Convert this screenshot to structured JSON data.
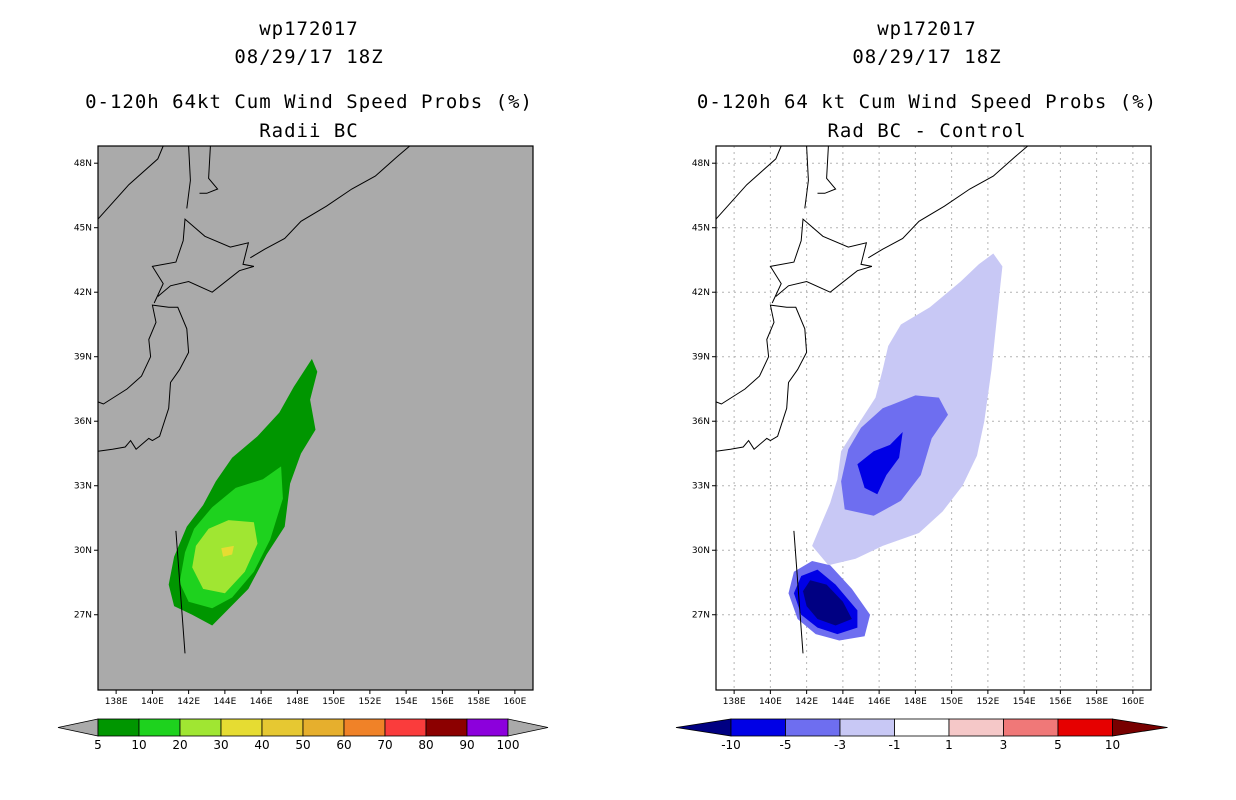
{
  "chart_data": [
    {
      "type": "heatmap",
      "storm_id": "wp172017",
      "datetime": "08/29/17 18Z",
      "title": "0-120h 64kt Cum Wind Speed Probs (%)",
      "subtitle": "Radii BC",
      "lon_range": [
        137,
        161
      ],
      "lat_range": [
        23.5,
        48.8
      ],
      "x_ticks": [
        "138E",
        "140E",
        "142E",
        "144E",
        "146E",
        "148E",
        "150E",
        "152E",
        "154E",
        "156E",
        "158E",
        "160E"
      ],
      "y_ticks": [
        "27N",
        "30N",
        "33N",
        "36N",
        "39N",
        "42N",
        "45N",
        "48N"
      ],
      "background": "#aaaaaa",
      "colorbar": {
        "labels": [
          "5",
          "10",
          "20",
          "30",
          "40",
          "50",
          "60",
          "70",
          "80",
          "90",
          "100"
        ],
        "colors": [
          "#009600",
          "#1ed21e",
          "#a0e632",
          "#e6dc32",
          "#e6c832",
          "#e6af2d",
          "#f08228",
          "#fa3c3c",
          "#8c0000",
          "#8c00dc"
        ]
      },
      "contours": [
        {
          "level": ">5",
          "color": "#009600",
          "poly": [
            [
              143.3,
              26.5
            ],
            [
              142.2,
              27.0
            ],
            [
              141.2,
              27.4
            ],
            [
              140.9,
              28.4
            ],
            [
              141.2,
              29.7
            ],
            [
              141.9,
              31.1
            ],
            [
              142.8,
              32.1
            ],
            [
              143.5,
              33.2
            ],
            [
              144.4,
              34.3
            ],
            [
              145.8,
              35.3
            ],
            [
              147.0,
              36.4
            ],
            [
              147.8,
              37.6
            ],
            [
              148.8,
              38.9
            ],
            [
              149.1,
              38.3
            ],
            [
              148.7,
              37.0
            ],
            [
              149.0,
              35.6
            ],
            [
              148.2,
              34.5
            ],
            [
              147.6,
              33.1
            ],
            [
              147.3,
              31.1
            ],
            [
              146.3,
              29.8
            ],
            [
              145.3,
              28.2
            ]
          ]
        },
        {
          "level": ">10",
          "color": "#1ed21e",
          "poly": [
            [
              143.3,
              27.3
            ],
            [
              142.0,
              27.6
            ],
            [
              141.5,
              28.5
            ],
            [
              141.8,
              29.9
            ],
            [
              142.3,
              31.0
            ],
            [
              143.3,
              32.0
            ],
            [
              144.6,
              32.9
            ],
            [
              146.1,
              33.3
            ],
            [
              147.1,
              33.9
            ],
            [
              147.2,
              32.4
            ],
            [
              146.5,
              30.5
            ],
            [
              145.6,
              29.0
            ],
            [
              144.4,
              27.8
            ]
          ]
        },
        {
          "level": ">20",
          "color": "#a0e632",
          "poly": [
            [
              144.0,
              28.0
            ],
            [
              142.8,
              28.2
            ],
            [
              142.2,
              29.2
            ],
            [
              142.4,
              30.2
            ],
            [
              143.1,
              31.0
            ],
            [
              144.2,
              31.4
            ],
            [
              145.6,
              31.3
            ],
            [
              145.8,
              30.3
            ],
            [
              145.1,
              29.0
            ]
          ]
        },
        {
          "level": ">30",
          "color": "#e6dc32",
          "poly": [
            [
              143.9,
              29.7
            ],
            [
              144.4,
              29.8
            ],
            [
              144.5,
              30.2
            ],
            [
              143.8,
              30.1
            ]
          ]
        }
      ]
    },
    {
      "type": "heatmap",
      "storm_id": "wp172017",
      "datetime": "08/29/17 18Z",
      "title": "0-120h 64 kt Cum Wind Speed Probs (%)",
      "subtitle": "Rad BC - Control",
      "lon_range": [
        137,
        161
      ],
      "lat_range": [
        23.5,
        48.8
      ],
      "x_ticks": [
        "138E",
        "140E",
        "142E",
        "144E",
        "146E",
        "148E",
        "150E",
        "152E",
        "154E",
        "156E",
        "158E",
        "160E"
      ],
      "y_ticks": [
        "27N",
        "30N",
        "33N",
        "36N",
        "39N",
        "42N",
        "45N",
        "48N"
      ],
      "background": "#ffffff",
      "colorbar": {
        "labels": [
          "-10",
          "-5",
          "-3",
          "-1",
          "1",
          "3",
          "5",
          "10"
        ],
        "colors": [
          "#0000e6",
          "#6e6ef0",
          "#c8c8f5",
          "#ffffff",
          "#f5c8c8",
          "#f07878",
          "#e60000"
        ],
        "low_color": "#000082",
        "high_color": "#780000"
      },
      "contours": [
        {
          "level": "-1 to -3",
          "color": "#c8c8f5",
          "poly": [
            [
              143.2,
              29.3
            ],
            [
              142.3,
              30.2
            ],
            [
              142.8,
              31.2
            ],
            [
              143.3,
              32.2
            ],
            [
              143.7,
              33.3
            ],
            [
              143.9,
              34.6
            ],
            [
              144.8,
              35.8
            ],
            [
              145.8,
              37.1
            ],
            [
              146.2,
              38.4
            ],
            [
              146.5,
              39.5
            ],
            [
              147.2,
              40.5
            ],
            [
              148.8,
              41.3
            ],
            [
              150.5,
              42.5
            ],
            [
              151.5,
              43.3
            ],
            [
              152.3,
              43.8
            ],
            [
              152.8,
              43.2
            ],
            [
              152.6,
              41.6
            ],
            [
              152.4,
              40.0
            ],
            [
              152.2,
              38.4
            ],
            [
              151.8,
              36.0
            ],
            [
              151.4,
              34.4
            ],
            [
              150.6,
              33.0
            ],
            [
              149.5,
              31.8
            ],
            [
              148.2,
              30.8
            ],
            [
              146.2,
              30.2
            ],
            [
              144.7,
              29.6
            ]
          ]
        },
        {
          "level": "-3 to -5",
          "color": "#6e6ef0",
          "poly": [
            [
              144.1,
              31.9
            ],
            [
              143.9,
              33.2
            ],
            [
              144.3,
              34.7
            ],
            [
              145.0,
              35.7
            ],
            [
              146.2,
              36.6
            ],
            [
              148.0,
              37.2
            ],
            [
              149.3,
              37.1
            ],
            [
              149.8,
              36.3
            ],
            [
              148.9,
              35.2
            ],
            [
              148.3,
              33.5
            ],
            [
              147.2,
              32.3
            ],
            [
              145.7,
              31.6
            ]
          ]
        },
        {
          "level": "-5 to -10",
          "color": "#0000e6",
          "poly": [
            [
              145.2,
              32.9
            ],
            [
              144.8,
              34.0
            ],
            [
              145.7,
              34.6
            ],
            [
              146.6,
              34.9
            ],
            [
              147.3,
              35.5
            ],
            [
              147.1,
              34.3
            ],
            [
              146.4,
              33.5
            ],
            [
              145.9,
              32.6
            ]
          ]
        },
        {
          "level": "-3 to -5",
          "color": "#6e6ef0",
          "poly": [
            [
              143.8,
              25.8
            ],
            [
              142.5,
              26.1
            ],
            [
              141.5,
              26.8
            ],
            [
              141.0,
              28.0
            ],
            [
              141.3,
              29.0
            ],
            [
              142.3,
              29.5
            ],
            [
              143.3,
              29.3
            ],
            [
              144.5,
              28.2
            ],
            [
              145.5,
              27.0
            ],
            [
              145.2,
              26.0
            ]
          ]
        },
        {
          "level": "-5 to -10",
          "color": "#0000e6",
          "poly": [
            [
              143.7,
              26.1
            ],
            [
              142.6,
              26.4
            ],
            [
              141.7,
              27.0
            ],
            [
              141.3,
              28.0
            ],
            [
              141.7,
              28.8
            ],
            [
              142.6,
              29.1
            ],
            [
              143.6,
              28.4
            ],
            [
              144.8,
              27.2
            ],
            [
              144.8,
              26.4
            ]
          ]
        },
        {
          "level": "< -10",
          "color": "#000082",
          "poly": [
            [
              143.6,
              26.5
            ],
            [
              142.6,
              26.8
            ],
            [
              142.0,
              27.4
            ],
            [
              141.8,
              28.1
            ],
            [
              142.2,
              28.6
            ],
            [
              143.1,
              28.4
            ],
            [
              144.0,
              27.6
            ],
            [
              144.5,
              26.8
            ]
          ]
        }
      ]
    }
  ]
}
